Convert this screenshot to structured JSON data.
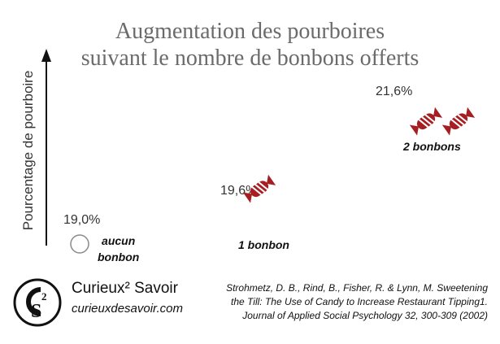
{
  "chart_data": {
    "type": "scatter",
    "title": [
      "Augmentation des pourboires",
      "suivant le nombre de bonbons offerts"
    ],
    "ylabel": "Pourcentage de pourboire",
    "points": [
      {
        "category": "aucun bonbon",
        "category_lines": [
          "aucun",
          "bonbon"
        ],
        "candies": 0,
        "value": 19.0,
        "label": "19,0%"
      },
      {
        "category": "1 bonbon",
        "category_lines": [
          "1 bonbon"
        ],
        "candies": 1,
        "value": 19.6,
        "label": "19,6%"
      },
      {
        "category": "2 bonbons",
        "category_lines": [
          "2 bonbons"
        ],
        "candies": 2,
        "value": 21.6,
        "label": "21,6%"
      }
    ],
    "legend": "none",
    "grid": false
  },
  "colors": {
    "candy": "#a61e22",
    "title": "#6b6b6b",
    "empty": "#8a8a8a"
  },
  "brand": {
    "name": "Curieux² Savoir",
    "url": "curieuxdesavoir.com",
    "logo_letters": "C2S"
  },
  "citation": [
    "Strohmetz, D. B., Rind, B., Fisher, R. & Lynn, M. Sweetening",
    "the Till: The Use of Candy to Increase Restaurant Tipping1.",
    "Journal of Applied Social Psychology 32, 300-309  (2002)"
  ]
}
